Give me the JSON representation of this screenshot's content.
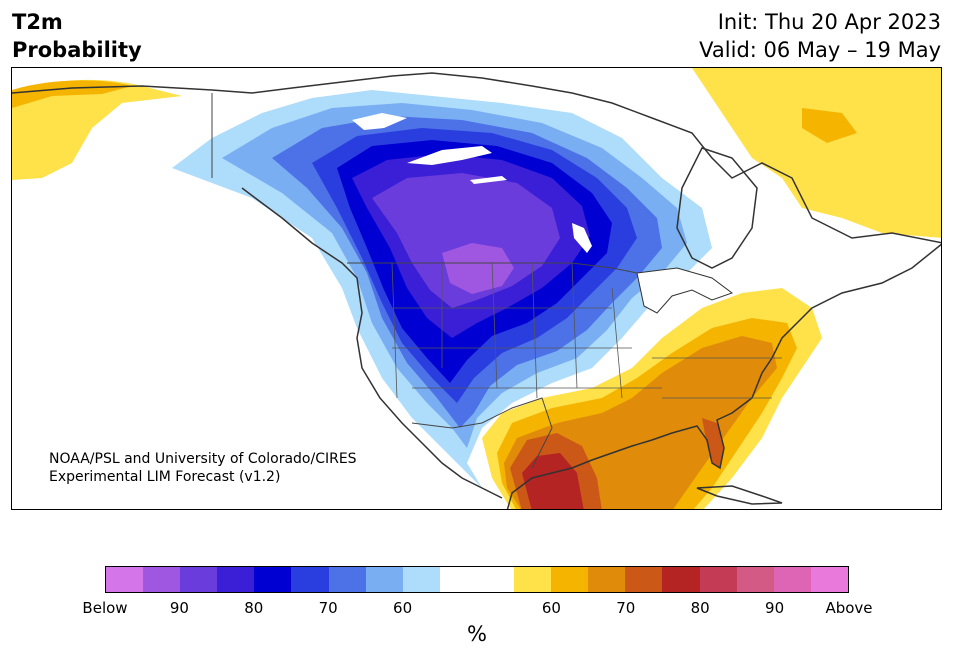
{
  "header": {
    "title_line1": "T2m",
    "title_line2": "Probability",
    "init": "Init: Thu 20 Apr 2023",
    "valid": "Valid: 06 May – 19 May"
  },
  "credit": {
    "line1": "NOAA/PSL and University of Colorado/CIRES",
    "line2": "Experimental LIM Forecast (v1.2)"
  },
  "colorbar": {
    "segments": [
      "#d575ea",
      "#9f57e2",
      "#6a3cdc",
      "#3a1fd6",
      "#0000d2",
      "#2a3ee0",
      "#4d72e8",
      "#7aaef2",
      "#aedcfb",
      "#ffffff",
      "#ffffff",
      "#ffe14a",
      "#f4b400",
      "#e08c0a",
      "#cc5817",
      "#b42422",
      "#c33b55",
      "#d35a85",
      "#de65b6",
      "#e979db"
    ],
    "ticks": [
      "Below",
      "90",
      "80",
      "70",
      "60",
      "60",
      "70",
      "80",
      "90",
      "Above"
    ],
    "unit": "%"
  },
  "palette": {
    "cold": [
      "#aedcfb",
      "#7aaef2",
      "#4d72e8",
      "#2a3ee0",
      "#0000d2",
      "#3a1fd6",
      "#6a3cdc",
      "#9f57e2"
    ],
    "warm": [
      "#ffe14a",
      "#f4b400",
      "#e08c0a",
      "#cc5817",
      "#b42422"
    ],
    "coast": "#333333"
  }
}
